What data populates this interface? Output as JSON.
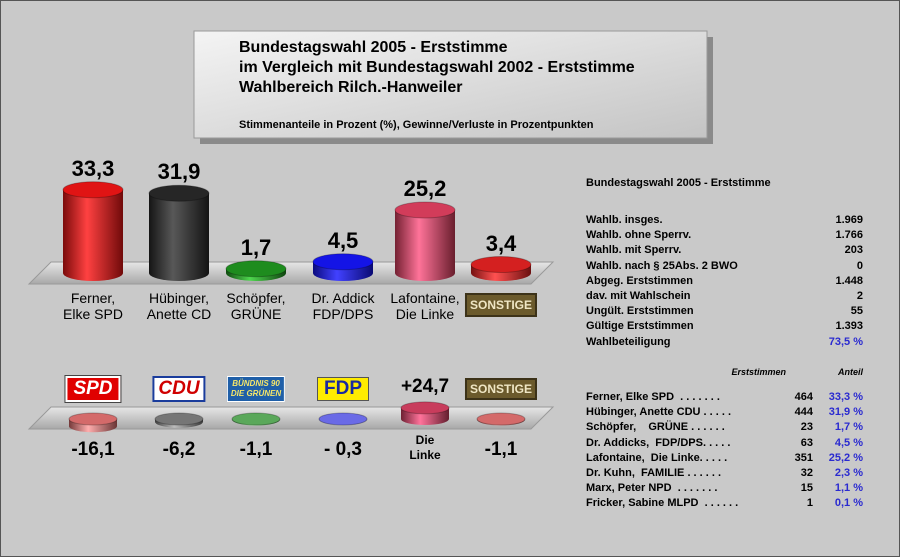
{
  "header": {
    "title_lines": [
      "Bundestagswahl 2005 - Erststimme",
      "im Vergleich mit Bundestagswahl 2002 - Erststimme",
      "Wahlbereich Rilch.-Hanweiler"
    ],
    "subtitle": "Stimmenanteile in Prozent (%), Gewinne/Verluste in Prozentpunkten"
  },
  "chart_data": [
    {
      "type": "bar",
      "categories": [
        "Ferner,\nElke SPD",
        "Hübinger,\nAnette CD",
        "Schöpfer,\nGRÜNE",
        "Dr. Addick\nFDP/DPS",
        "Lafontaine,\nDie Linke",
        "SONSTIGE"
      ],
      "values": [
        33.3,
        31.9,
        1.7,
        4.5,
        25.2,
        3.4
      ],
      "value_labels": [
        "33,3",
        "31,9",
        "1,7",
        "4,5",
        "25,2",
        "3,4"
      ],
      "colors": [
        "#e01414",
        "#262626",
        "#1e8c1e",
        "#1414e6",
        "#d23c5a",
        "#d42020"
      ]
    },
    {
      "type": "bar",
      "categories": [
        "SPD",
        "CDU",
        "BÜNDNIS 90\nDIE GRÜNEN",
        "FDP",
        "Die\nLinke",
        "SONSTIGE"
      ],
      "values": [
        -16.1,
        -6.2,
        -1.1,
        -0.3,
        24.7,
        -1.1
      ],
      "value_labels": [
        "-16,1",
        "-6,2",
        "-1,1",
        "- 0,3",
        "+24,7",
        "-1,1"
      ],
      "colors": [
        "#d46a6a",
        "#767676",
        "#5aa85a",
        "#6a6ae6",
        "#c83c5c",
        "#d46a6a"
      ]
    }
  ],
  "stats": {
    "title": "Bundestagswahl 2005 - Erststimme",
    "rows": [
      [
        "Wahlb. insges.",
        "1.969"
      ],
      [
        "Wahlb. ohne Sperrv.",
        "1.766"
      ],
      [
        "Wahlb. mit Sperrv.",
        "203"
      ],
      [
        "Wahlb. nach § 25Abs. 2 BWO",
        "0"
      ],
      [
        "Abgeg. Erststimmen",
        "1.448"
      ],
      [
        "dav. mit Wahlschein",
        "2"
      ],
      [
        "Ungült. Erststimmen",
        "55"
      ],
      [
        "Gültige Erststimmen",
        "1.393"
      ],
      [
        "Wahlbeteiligung",
        "73,5 %"
      ]
    ]
  },
  "candidates": {
    "header": [
      "Erststimmen",
      "Anteil"
    ],
    "rows": [
      [
        "Ferner, Elke SPD  . . . . . . .",
        "464",
        "33,3 %"
      ],
      [
        "Hübinger, Anette CDU . . . . .",
        "444",
        "31,9 %"
      ],
      [
        "Schöpfer,    GRÜNE . . . . . .",
        "23",
        "1,7 %"
      ],
      [
        "Dr. Addicks,  FDP/DPS. . . . .",
        "63",
        "4,5 %"
      ],
      [
        "Lafontaine,  Die Linke. . . . .",
        "351",
        "25,2 %"
      ],
      [
        "Dr. Kuhn,  FAMILIE . . . . . .",
        "32",
        "2,3 %"
      ],
      [
        "Marx, Peter NPD  . . . . . . .",
        "15",
        "1,1 %"
      ],
      [
        "Fricker, Sabine MLPD  . . . . . .",
        "1",
        "0,1 %"
      ]
    ]
  }
}
